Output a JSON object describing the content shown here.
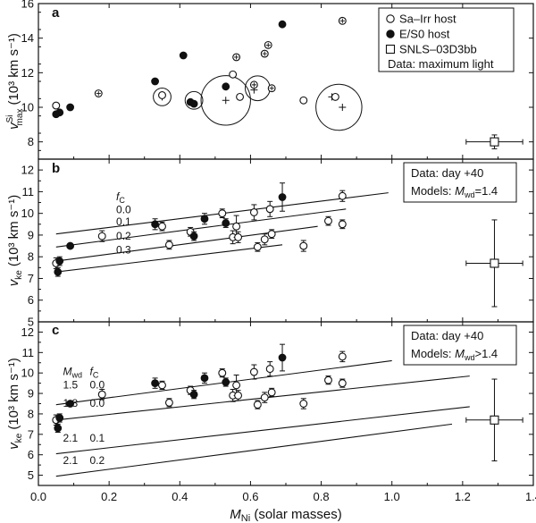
{
  "figure": {
    "x_axis_label": "M",
    "x_axis_label_sub": "Ni",
    "x_axis_label_rest": " (solar masses)",
    "x_ticks": [
      "0.0",
      "0.2",
      "0.4",
      "0.6",
      "0.8",
      "1.0",
      "1.2",
      "1.4"
    ]
  },
  "legend_a": {
    "items": [
      {
        "marker": "open-circle",
        "label": "Sa–Irr host"
      },
      {
        "marker": "filled-circle",
        "label": "E/S0 host"
      },
      {
        "marker": "open-square",
        "label": "SNLS–03D3bb"
      }
    ],
    "note": "Data: maximum light"
  },
  "legend_b": {
    "line1": "Data: day +40",
    "line2_prefix": "Models: ",
    "line2_sym": "M",
    "line2_sub": "wd",
    "line2_rest": "=1.4"
  },
  "legend_c": {
    "line1": "Data: day +40",
    "line2_prefix": "Models: ",
    "line2_sym": "M",
    "line2_sub": "wd",
    "line2_rest": ">1.4"
  },
  "colors": {
    "ink": "#111111",
    "background": "#ffffff"
  },
  "chart_data": [
    {
      "panel": "a",
      "type": "scatter",
      "ylabel": "v",
      "ylabel_sup": "Si",
      "ylabel_sub": "max",
      "ylabel_unit": "(10³ km s⁻¹)",
      "xlim": [
        0,
        1.4
      ],
      "ylim": [
        7,
        16
      ],
      "y_ticks": [
        "8",
        "10",
        "12",
        "14",
        "16"
      ],
      "points": [
        {
          "x": 0.05,
          "y": 10.1,
          "filled": false,
          "plus": false
        },
        {
          "x": 0.06,
          "y": 9.7,
          "filled": true,
          "plus": false
        },
        {
          "x": 0.05,
          "y": 9.6,
          "filled": true,
          "plus": false
        },
        {
          "x": 0.09,
          "y": 10.0,
          "filled": true,
          "plus": false
        },
        {
          "x": 0.17,
          "y": 10.8,
          "filled": false,
          "plus": true
        },
        {
          "x": 0.33,
          "y": 11.5,
          "filled": true,
          "plus": false
        },
        {
          "x": 0.35,
          "y": 10.7,
          "filled": false,
          "plus": false
        },
        {
          "x": 0.41,
          "y": 13.0,
          "filled": true,
          "plus": false
        },
        {
          "x": 0.43,
          "y": 10.3,
          "filled": true,
          "plus": false
        },
        {
          "x": 0.44,
          "y": 10.2,
          "filled": true,
          "plus": false
        },
        {
          "x": 0.53,
          "y": 11.2,
          "filled": true,
          "plus": false
        },
        {
          "x": 0.55,
          "y": 11.9,
          "filled": false,
          "plus": false
        },
        {
          "x": 0.56,
          "y": 12.9,
          "filled": false,
          "plus": true
        },
        {
          "x": 0.57,
          "y": 10.6,
          "filled": false,
          "plus": false
        },
        {
          "x": 0.61,
          "y": 11.3,
          "filled": false,
          "plus": true
        },
        {
          "x": 0.64,
          "y": 13.1,
          "filled": false,
          "plus": true
        },
        {
          "x": 0.65,
          "y": 13.6,
          "filled": false,
          "plus": true
        },
        {
          "x": 0.66,
          "y": 11.1,
          "filled": false,
          "plus": true
        },
        {
          "x": 0.69,
          "y": 14.8,
          "filled": true,
          "plus": false
        },
        {
          "x": 0.75,
          "y": 10.4,
          "filled": false,
          "plus": false
        },
        {
          "x": 0.84,
          "y": 10.6,
          "filled": false,
          "plus": false
        },
        {
          "x": 0.86,
          "y": 15.0,
          "filled": false,
          "plus": true
        }
      ],
      "bubbles": [
        {
          "x": 0.35,
          "y": 10.6,
          "r": 0.025
        },
        {
          "x": 0.44,
          "y": 10.4,
          "r": 0.025
        },
        {
          "x": 0.53,
          "y": 10.4,
          "r": 0.07
        },
        {
          "x": 0.62,
          "y": 11.1,
          "r": 0.035
        },
        {
          "x": 0.85,
          "y": 10.0,
          "r": 0.065
        }
      ],
      "plus_markers": [
        {
          "x": 0.35,
          "y": 10.6
        },
        {
          "x": 0.53,
          "y": 10.4
        },
        {
          "x": 0.61,
          "y": 11.0
        },
        {
          "x": 0.83,
          "y": 10.6
        },
        {
          "x": 0.86,
          "y": 10.0
        }
      ],
      "snls": {
        "x": 1.29,
        "y": 8.0,
        "xerr": 0.08,
        "yerr": 0.4
      }
    },
    {
      "panel": "b",
      "type": "scatter",
      "ylabel": "v",
      "ylabel_sub": "ke",
      "ylabel_unit": "(10³ km s⁻¹)",
      "xlim": [
        0,
        1.4
      ],
      "ylim": [
        5,
        12.5
      ],
      "y_ticks": [
        "5",
        "6",
        "7",
        "8",
        "9",
        "10",
        "11",
        "12"
      ],
      "model_header": "f",
      "model_header_sub": "C",
      "models": [
        {
          "label": "0.0",
          "x1": 0.05,
          "y1": 9.05,
          "x2": 0.99,
          "y2": 10.95,
          "lx": 0.22,
          "ly": 10.0
        },
        {
          "label": "0.1",
          "x1": 0.05,
          "y1": 8.45,
          "x2": 0.87,
          "y2": 10.2,
          "lx": 0.22,
          "ly": 9.45
        },
        {
          "label": "0.2",
          "x1": 0.05,
          "y1": 7.8,
          "x2": 0.79,
          "y2": 9.4,
          "lx": 0.22,
          "ly": 8.8
        },
        {
          "label": "0.3",
          "x1": 0.05,
          "y1": 7.3,
          "x2": 0.69,
          "y2": 8.55,
          "lx": 0.22,
          "ly": 8.15
        }
      ],
      "points": [
        {
          "x": 0.05,
          "y": 7.7,
          "filled": false,
          "yerr": 0.25
        },
        {
          "x": 0.055,
          "y": 7.3,
          "filled": true,
          "yerr": 0.2
        },
        {
          "x": 0.06,
          "y": 7.8,
          "filled": true,
          "yerr": 0.2
        },
        {
          "x": 0.09,
          "y": 8.5,
          "filled": true,
          "yerr": 0.0
        },
        {
          "x": 0.18,
          "y": 8.95,
          "filled": false,
          "yerr": 0.25
        },
        {
          "x": 0.33,
          "y": 9.5,
          "filled": true,
          "yerr": 0.25
        },
        {
          "x": 0.35,
          "y": 9.4,
          "filled": false,
          "yerr": 0.2
        },
        {
          "x": 0.37,
          "y": 8.55,
          "filled": false,
          "yerr": 0.2
        },
        {
          "x": 0.43,
          "y": 9.15,
          "filled": false,
          "yerr": 0.2
        },
        {
          "x": 0.44,
          "y": 8.95,
          "filled": true,
          "yerr": 0.2
        },
        {
          "x": 0.47,
          "y": 9.75,
          "filled": true,
          "yerr": 0.25
        },
        {
          "x": 0.52,
          "y": 10.0,
          "filled": false,
          "yerr": 0.2
        },
        {
          "x": 0.53,
          "y": 9.55,
          "filled": true,
          "yerr": 0.2
        },
        {
          "x": 0.55,
          "y": 8.9,
          "filled": false,
          "yerr": 0.3
        },
        {
          "x": 0.56,
          "y": 9.4,
          "filled": false,
          "yerr": 0.5
        },
        {
          "x": 0.565,
          "y": 8.9,
          "filled": false,
          "yerr": 0.25
        },
        {
          "x": 0.61,
          "y": 10.05,
          "filled": false,
          "yerr": 0.35
        },
        {
          "x": 0.62,
          "y": 8.45,
          "filled": false,
          "yerr": 0.2
        },
        {
          "x": 0.64,
          "y": 8.8,
          "filled": false,
          "yerr": 0.25
        },
        {
          "x": 0.655,
          "y": 10.2,
          "filled": false,
          "yerr": 0.35
        },
        {
          "x": 0.66,
          "y": 9.05,
          "filled": false,
          "yerr": 0.2
        },
        {
          "x": 0.69,
          "y": 10.75,
          "filled": true,
          "yerr": 0.65
        },
        {
          "x": 0.75,
          "y": 8.5,
          "filled": false,
          "yerr": 0.25
        },
        {
          "x": 0.82,
          "y": 9.65,
          "filled": false,
          "yerr": 0.2
        },
        {
          "x": 0.86,
          "y": 10.8,
          "filled": false,
          "yerr": 0.25
        },
        {
          "x": 0.86,
          "y": 9.5,
          "filled": false,
          "yerr": 0.2
        }
      ],
      "snls": {
        "x": 1.29,
        "y": 7.7,
        "xerr": 0.08,
        "yerr": 2.0
      }
    },
    {
      "panel": "c",
      "type": "scatter",
      "ylabel": "v",
      "ylabel_sub": "ke",
      "ylabel_unit": "(10³ km s⁻¹)",
      "xlim": [
        0,
        1.4
      ],
      "ylim": [
        4.5,
        12.5
      ],
      "y_ticks": [
        "5",
        "6",
        "7",
        "8",
        "9",
        "10",
        "11",
        "12"
      ],
      "model_header": "M",
      "model_header_sub": "wd",
      "model_header2": "f",
      "model_header2_sub": "C",
      "models": [
        {
          "label1": "1.5",
          "label2": "0.0",
          "x1": 0.05,
          "y1": 8.45,
          "x2": 1.0,
          "y2": 10.6,
          "lx": 0.12,
          "ly": 9.25
        },
        {
          "label1": "1.8",
          "label2": "0.0",
          "x1": 0.05,
          "y1": 7.7,
          "x2": 1.22,
          "y2": 9.85,
          "lx": 0.12,
          "ly": 8.35
        },
        {
          "label1": "2.1",
          "label2": "0.1",
          "x1": 0.05,
          "y1": 6.05,
          "x2": 1.22,
          "y2": 8.35,
          "lx": 0.12,
          "ly": 6.65
        },
        {
          "label1": "2.1",
          "label2": "0.2",
          "x1": 0.05,
          "y1": 4.95,
          "x2": 1.17,
          "y2": 7.5,
          "lx": 0.12,
          "ly": 5.55
        }
      ],
      "points": [
        {
          "x": 0.05,
          "y": 7.7,
          "filled": false,
          "yerr": 0.25
        },
        {
          "x": 0.055,
          "y": 7.3,
          "filled": true,
          "yerr": 0.2
        },
        {
          "x": 0.06,
          "y": 7.8,
          "filled": true,
          "yerr": 0.2
        },
        {
          "x": 0.09,
          "y": 8.5,
          "filled": true,
          "yerr": 0.0
        },
        {
          "x": 0.18,
          "y": 8.95,
          "filled": false,
          "yerr": 0.25
        },
        {
          "x": 0.33,
          "y": 9.5,
          "filled": true,
          "yerr": 0.25
        },
        {
          "x": 0.35,
          "y": 9.4,
          "filled": false,
          "yerr": 0.2
        },
        {
          "x": 0.37,
          "y": 8.55,
          "filled": false,
          "yerr": 0.2
        },
        {
          "x": 0.43,
          "y": 9.15,
          "filled": false,
          "yerr": 0.2
        },
        {
          "x": 0.44,
          "y": 8.95,
          "filled": true,
          "yerr": 0.2
        },
        {
          "x": 0.47,
          "y": 9.75,
          "filled": true,
          "yerr": 0.25
        },
        {
          "x": 0.52,
          "y": 10.0,
          "filled": false,
          "yerr": 0.2
        },
        {
          "x": 0.53,
          "y": 9.55,
          "filled": true,
          "yerr": 0.2
        },
        {
          "x": 0.55,
          "y": 8.9,
          "filled": false,
          "yerr": 0.3
        },
        {
          "x": 0.56,
          "y": 9.4,
          "filled": false,
          "yerr": 0.5
        },
        {
          "x": 0.565,
          "y": 8.9,
          "filled": false,
          "yerr": 0.25
        },
        {
          "x": 0.61,
          "y": 10.05,
          "filled": false,
          "yerr": 0.35
        },
        {
          "x": 0.62,
          "y": 8.45,
          "filled": false,
          "yerr": 0.2
        },
        {
          "x": 0.64,
          "y": 8.8,
          "filled": false,
          "yerr": 0.25
        },
        {
          "x": 0.655,
          "y": 10.2,
          "filled": false,
          "yerr": 0.35
        },
        {
          "x": 0.66,
          "y": 9.05,
          "filled": false,
          "yerr": 0.2
        },
        {
          "x": 0.69,
          "y": 10.75,
          "filled": true,
          "yerr": 0.65
        },
        {
          "x": 0.75,
          "y": 8.5,
          "filled": false,
          "yerr": 0.25
        },
        {
          "x": 0.82,
          "y": 9.65,
          "filled": false,
          "yerr": 0.2
        },
        {
          "x": 0.86,
          "y": 10.8,
          "filled": false,
          "yerr": 0.25
        },
        {
          "x": 0.86,
          "y": 9.5,
          "filled": false,
          "yerr": 0.2
        }
      ],
      "snls": {
        "x": 1.29,
        "y": 7.7,
        "xerr": 0.08,
        "yerr": 2.0
      }
    }
  ]
}
